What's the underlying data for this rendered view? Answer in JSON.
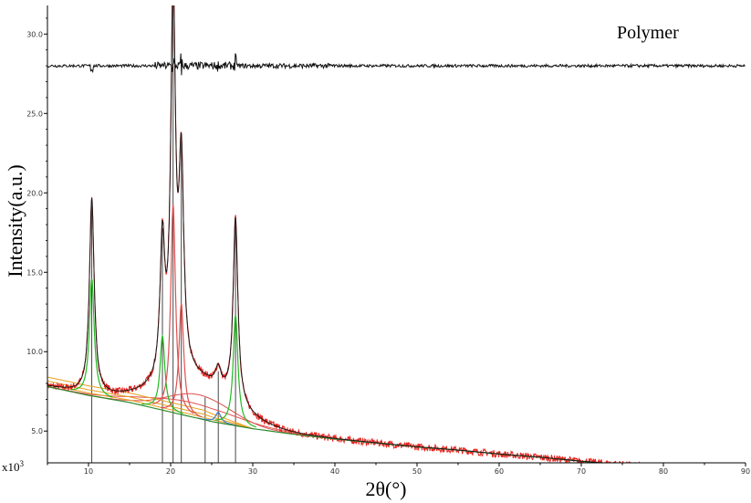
{
  "chart_data": {
    "type": "line",
    "title": "",
    "legend_text": "Polymer",
    "legend_placement": "top-right",
    "xlabel": "2θ(°)",
    "ylabel": "Intensity(a.u.)",
    "y_multiplier": "x10",
    "y_multiplier_exp": "3",
    "xlim": [
      5,
      90
    ],
    "ylim": [
      3,
      31.8
    ],
    "x_ticks": [
      "10",
      "20",
      "30",
      "40",
      "50",
      "60",
      "70",
      "80",
      "90"
    ],
    "y_ticks": [
      "5.0",
      "10.0",
      "15.0",
      "20.0",
      "25.0",
      "30.0"
    ],
    "grid": false,
    "background": {
      "knots": [
        [
          5,
          7.8
        ],
        [
          10,
          7.25
        ],
        [
          15,
          6.8
        ],
        [
          20,
          6.2
        ],
        [
          25,
          5.6
        ],
        [
          30,
          5.15
        ],
        [
          35,
          4.8
        ],
        [
          40,
          4.5
        ],
        [
          45,
          4.25
        ],
        [
          50,
          4.0
        ],
        [
          55,
          3.8
        ],
        [
          60,
          3.55
        ],
        [
          65,
          3.35
        ],
        [
          70,
          3.1
        ],
        [
          75,
          2.9
        ],
        [
          80,
          2.65
        ],
        [
          85,
          2.5
        ],
        [
          90,
          2.3
        ]
      ]
    },
    "peaks": [
      {
        "x": 10.4,
        "height": 12.3,
        "width": 0.35
      },
      {
        "x": 19.0,
        "height": 8.5,
        "width": 0.35
      },
      {
        "x": 20.3,
        "height": 23.8,
        "width": 0.35
      },
      {
        "x": 21.3,
        "height": 12.7,
        "width": 0.35
      },
      {
        "x": 25.8,
        "height": 1.2,
        "width": 0.4
      },
      {
        "x": 27.9,
        "height": 11.6,
        "width": 0.35
      }
    ],
    "amorphous_humps": [
      {
        "x": 23.5,
        "height": 1.5,
        "width": 5.5
      },
      {
        "x": 22.5,
        "height": 0.9,
        "width": 8.0
      }
    ],
    "peak_markers": [
      10.4,
      19.0,
      20.3,
      21.3,
      24.2,
      25.8,
      27.9
    ],
    "upper_trace_baseline": 28.0,
    "colors": {
      "observed": "#e8231f",
      "fit": "#1a1a1a",
      "baseline": "#2f8a2f",
      "peak_green": "#22bb22",
      "peak_blue": "#3a7fd0",
      "hump_red": "#e05050",
      "hump_orange": "#e8a020",
      "marker": "#333333",
      "axis": "#000000"
    }
  }
}
